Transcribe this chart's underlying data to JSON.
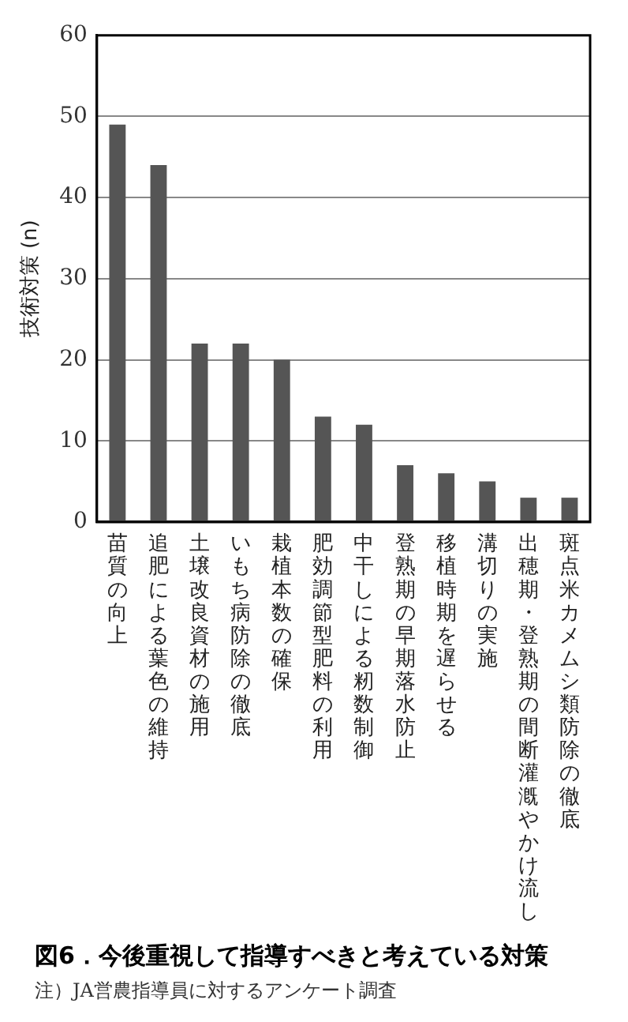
{
  "chart_data": {
    "type": "bar",
    "title": "図6．今後重視して指導すべきと考えている対策",
    "ylabel": "技術対策 (n)",
    "categories": [
      "苗質の向上",
      "追肥による葉色の維持",
      "土壌改良資材の施用",
      "いもち病防除の徹底",
      "栽植本数の確保",
      "肥効調節型肥料の利用",
      "中干しによる籾数制御",
      "登熟期の早期落水防止",
      "移植時期を遅らせる",
      "溝切りの実施",
      "出穂期・登熟期の間断灌漑やかけ流し",
      "斑点米カメムシ類防除の徹底"
    ],
    "values": [
      49,
      44,
      22,
      22,
      20,
      13,
      12,
      7,
      6,
      5,
      3,
      3
    ],
    "color": "#555555",
    "ylim": [
      0,
      60
    ],
    "yticks": [
      0,
      10,
      20,
      30,
      40,
      50,
      60
    ],
    "grid": "y",
    "annotations": [
      "注）JA営農指導員に対するアンケート調査"
    ]
  }
}
